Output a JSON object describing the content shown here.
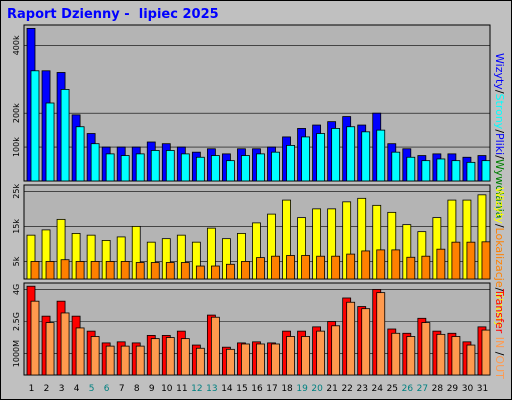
{
  "title": "Raport Dzienny -  lipiec 2025",
  "colors": {
    "background": "#c0c0c0",
    "panel": "#b4b4b4",
    "wizyty": "#0000ff",
    "strony": "#00ffff",
    "pliki": "#0000ff",
    "wywolania": "#008000",
    "lokalizacje": "#ffff00",
    "kbin_kbout": "#ff8000",
    "transfer_in": "#ff0000",
    "transfer_out": "#ff9a4e"
  },
  "legend": {
    "top": [
      {
        "text": "Wizyty",
        "color": "#0000ff"
      },
      {
        "text": "/",
        "color": "#000000"
      },
      {
        "text": "Strony",
        "color": "#00ffff"
      },
      {
        "text": "/",
        "color": "#000000"
      },
      {
        "text": "Pliki",
        "color": "#0000ff"
      },
      {
        "text": "/",
        "color": "#000000"
      },
      {
        "text": "Wywołania",
        "color": "#008000"
      }
    ],
    "middle": [
      {
        "text": "Wizyty",
        "color": "#ffff00"
      },
      {
        "text": "/",
        "color": "#000000"
      },
      {
        "text": "Lokalizacje",
        "color": "#ff8000"
      },
      {
        "text": "/",
        "color": "#000000"
      },
      {
        "text": "Strony",
        "color": "#ffff00"
      }
    ],
    "bottom": [
      {
        "text": "Transfer",
        "color": "#ff0000"
      },
      {
        "text": " IN ",
        "color": "#ff9a4e"
      },
      {
        "text": "/",
        "color": "#000000"
      },
      {
        "text": "OUT",
        "color": "#ff9a4e"
      }
    ]
  },
  "chart_data": [
    {
      "type": "bar",
      "ylabels": [
        "400k",
        "200k",
        "100k"
      ],
      "ylabel_values": [
        400000,
        200000,
        100000
      ],
      "ylim": [
        0,
        460000
      ],
      "grid": true,
      "categories": [
        "1",
        "2",
        "3",
        "4",
        "5",
        "6",
        "7",
        "8",
        "9",
        "10",
        "11",
        "12",
        "13",
        "14",
        "15",
        "16",
        "17",
        "18",
        "19",
        "20",
        "21",
        "22",
        "23",
        "24",
        "25",
        "26",
        "27",
        "28",
        "29",
        "30",
        "31"
      ],
      "series": [
        {
          "color": "#0000ff",
          "values": [
            450000,
            325000,
            320000,
            195000,
            140000,
            100000,
            100000,
            100000,
            115000,
            110000,
            100000,
            85000,
            95000,
            80000,
            95000,
            95000,
            100000,
            130000,
            155000,
            165000,
            175000,
            190000,
            165000,
            200000,
            110000,
            95000,
            75000,
            80000,
            80000,
            70000,
            75000
          ]
        },
        {
          "color": "#00ffff",
          "values": [
            325000,
            230000,
            270000,
            160000,
            110000,
            80000,
            75000,
            80000,
            90000,
            90000,
            80000,
            70000,
            75000,
            60000,
            75000,
            80000,
            85000,
            105000,
            130000,
            140000,
            155000,
            160000,
            145000,
            150000,
            85000,
            70000,
            60000,
            65000,
            60000,
            55000,
            60000
          ]
        }
      ]
    },
    {
      "type": "bar",
      "ylabels": [
        "25k",
        "15k",
        "5k"
      ],
      "ylabel_values": [
        25000,
        15000,
        5000
      ],
      "ylim": [
        0,
        26800
      ],
      "grid": true,
      "categories": [
        "1",
        "2",
        "3",
        "4",
        "5",
        "6",
        "7",
        "8",
        "9",
        "10",
        "11",
        "12",
        "13",
        "14",
        "15",
        "16",
        "17",
        "18",
        "19",
        "20",
        "21",
        "22",
        "23",
        "24",
        "25",
        "26",
        "27",
        "28",
        "29",
        "30",
        "31"
      ],
      "series": [
        {
          "color": "#ffff00",
          "values": [
            12500,
            14000,
            17000,
            13000,
            12500,
            11000,
            12000,
            15000,
            10500,
            11500,
            12500,
            10500,
            14500,
            11500,
            13000,
            16000,
            18500,
            22500,
            17500,
            20000,
            20000,
            22000,
            23000,
            21000,
            19000,
            15500,
            13500,
            17500,
            22500,
            22500,
            24000
          ]
        },
        {
          "color": "#ff8000",
          "values": [
            5000,
            5000,
            5500,
            5000,
            5000,
            5000,
            5000,
            4700,
            4700,
            4700,
            4700,
            3700,
            3700,
            4200,
            5000,
            6100,
            6500,
            6700,
            6700,
            6500,
            6500,
            7100,
            8000,
            8300,
            8300,
            6200,
            6500,
            8500,
            10500,
            10500,
            10600
          ]
        }
      ]
    },
    {
      "type": "bar",
      "ylabels": [
        "4G",
        "2.5G",
        "1000M"
      ],
      "ylabel_values": [
        4000,
        2500,
        1000
      ],
      "ylim": [
        0,
        4300
      ],
      "grid": true,
      "categories": [
        "1",
        "2",
        "3",
        "4",
        "5",
        "6",
        "7",
        "8",
        "9",
        "10",
        "11",
        "12",
        "13",
        "14",
        "15",
        "16",
        "17",
        "18",
        "19",
        "20",
        "21",
        "22",
        "23",
        "24",
        "25",
        "26",
        "27",
        "28",
        "29",
        "30",
        "31"
      ],
      "series": [
        {
          "color": "#ff0000",
          "values": [
            4150,
            2750,
            3450,
            2750,
            2050,
            1500,
            1550,
            1500,
            1850,
            1850,
            2050,
            1400,
            2800,
            1300,
            1500,
            1550,
            1500,
            2050,
            2050,
            2250,
            2500,
            3600,
            3200,
            4000,
            2150,
            1950,
            2650,
            2050,
            1950,
            1550,
            2250
          ]
        },
        {
          "color": "#ff9a4e",
          "values": [
            3450,
            2450,
            2900,
            2200,
            1800,
            1350,
            1350,
            1350,
            1700,
            1750,
            1700,
            1250,
            2700,
            1200,
            1450,
            1450,
            1450,
            1800,
            1800,
            2050,
            2300,
            3400,
            3100,
            3850,
            1950,
            1800,
            2450,
            1900,
            1800,
            1400,
            2100
          ]
        }
      ]
    }
  ]
}
